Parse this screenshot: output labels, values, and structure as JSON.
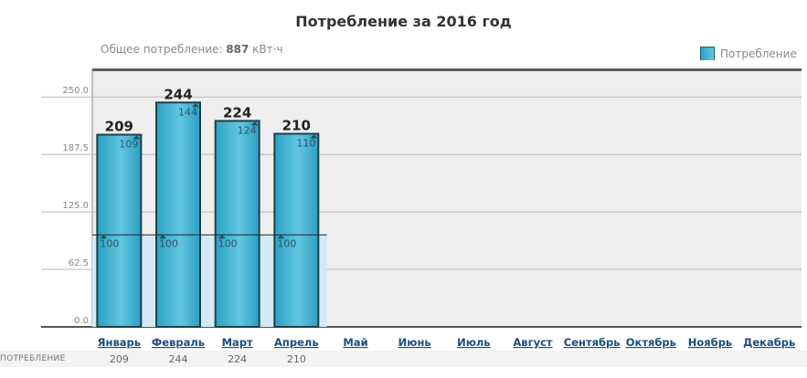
{
  "page": {
    "title": "Потребление за 2016 год",
    "total_label": "Общее потребление:",
    "total_value": "887",
    "total_unit": "кВт·ч",
    "footer_label": "ПОТРЕБЛЕНИЕ"
  },
  "chart_data": {
    "type": "bar",
    "title": "Потребление за 2016 год",
    "categories": [
      "Январь",
      "Февраль",
      "Март",
      "Апрель",
      "Май",
      "Июнь",
      "Июль",
      "Август",
      "Сентябрь",
      "Октябрь",
      "Ноябрь",
      "Декабрь"
    ],
    "series": [
      {
        "name": "Потребление",
        "values": [
          209,
          244,
          224,
          210,
          null,
          null,
          null,
          null,
          null,
          null,
          null,
          null
        ]
      }
    ],
    "base_values": [
      100,
      100,
      100,
      100,
      null,
      null,
      null,
      null,
      null,
      null,
      null,
      null
    ],
    "excess_values": [
      109,
      144,
      124,
      110,
      null,
      null,
      null,
      null,
      null,
      null,
      null,
      null
    ],
    "reference_line": 100,
    "table_values": [
      "209",
      "244",
      "224",
      "210",
      "",
      "",
      "",
      "",
      "",
      "",
      "",
      ""
    ],
    "ylim": [
      0,
      281
    ],
    "yticks": [
      0,
      62.5,
      125,
      187.5,
      250
    ],
    "ytick_labels": [
      "0.0",
      "62.5",
      "125.0",
      "187.5",
      "250.0"
    ],
    "grid": true,
    "legend": {
      "position": "top-right",
      "labels": [
        "Потребление"
      ]
    },
    "colors": {
      "bar_dark": "#2aa2c3",
      "bar_light": "#62c6e2",
      "bar_border": "#1f3f4a",
      "band": "#d4e8f5",
      "plot_bg": "#efefef"
    }
  }
}
